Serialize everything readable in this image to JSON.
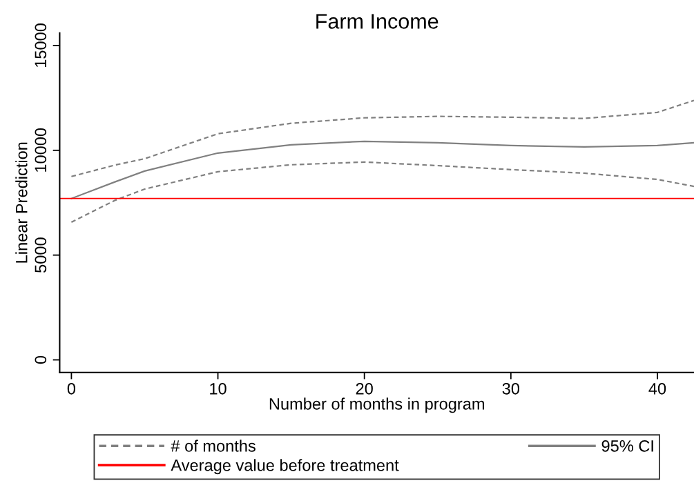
{
  "chart_data": {
    "type": "line",
    "title": "Farm Income",
    "xlabel": "Number of months in program",
    "ylabel": "Linear Prediction",
    "xlim": [
      -0.8,
      42.5
    ],
    "xticks": [
      0,
      10,
      20,
      30,
      40
    ],
    "ylim": [
      -600,
      15600
    ],
    "yticks": [
      0,
      5000,
      10000,
      15000
    ],
    "series": [
      {
        "name": "# of months",
        "color": "#808080",
        "line_style": "dashed",
        "x": [
          0,
          3,
          5,
          10,
          15,
          20,
          25,
          30,
          35,
          40,
          42.5
        ],
        "values": [
          8750,
          9300,
          9600,
          10790,
          11290,
          11550,
          11620,
          11580,
          11520,
          11810,
          12380
        ]
      },
      {
        "color": "#808080",
        "line_style": "dashed",
        "x": [
          0,
          3,
          5,
          10,
          15,
          20,
          25,
          30,
          35,
          40,
          42.5
        ],
        "values": [
          6570,
          7620,
          8150,
          8980,
          9310,
          9440,
          9270,
          9080,
          8910,
          8610,
          8280
        ]
      },
      {
        "name": "95% CI",
        "color": "#808080",
        "line_style": "solid",
        "x": [
          0,
          3,
          5,
          10,
          15,
          20,
          25,
          30,
          35,
          40,
          42.5
        ],
        "values": [
          7700,
          8500,
          9010,
          9870,
          10260,
          10430,
          10360,
          10230,
          10160,
          10230,
          10360
        ]
      }
    ],
    "ref_lines": [
      {
        "axis": "y",
        "value": 7700,
        "label": "Average value before treatment",
        "color": "#ff0000"
      }
    ],
    "grid": false,
    "legend": "bottom"
  }
}
